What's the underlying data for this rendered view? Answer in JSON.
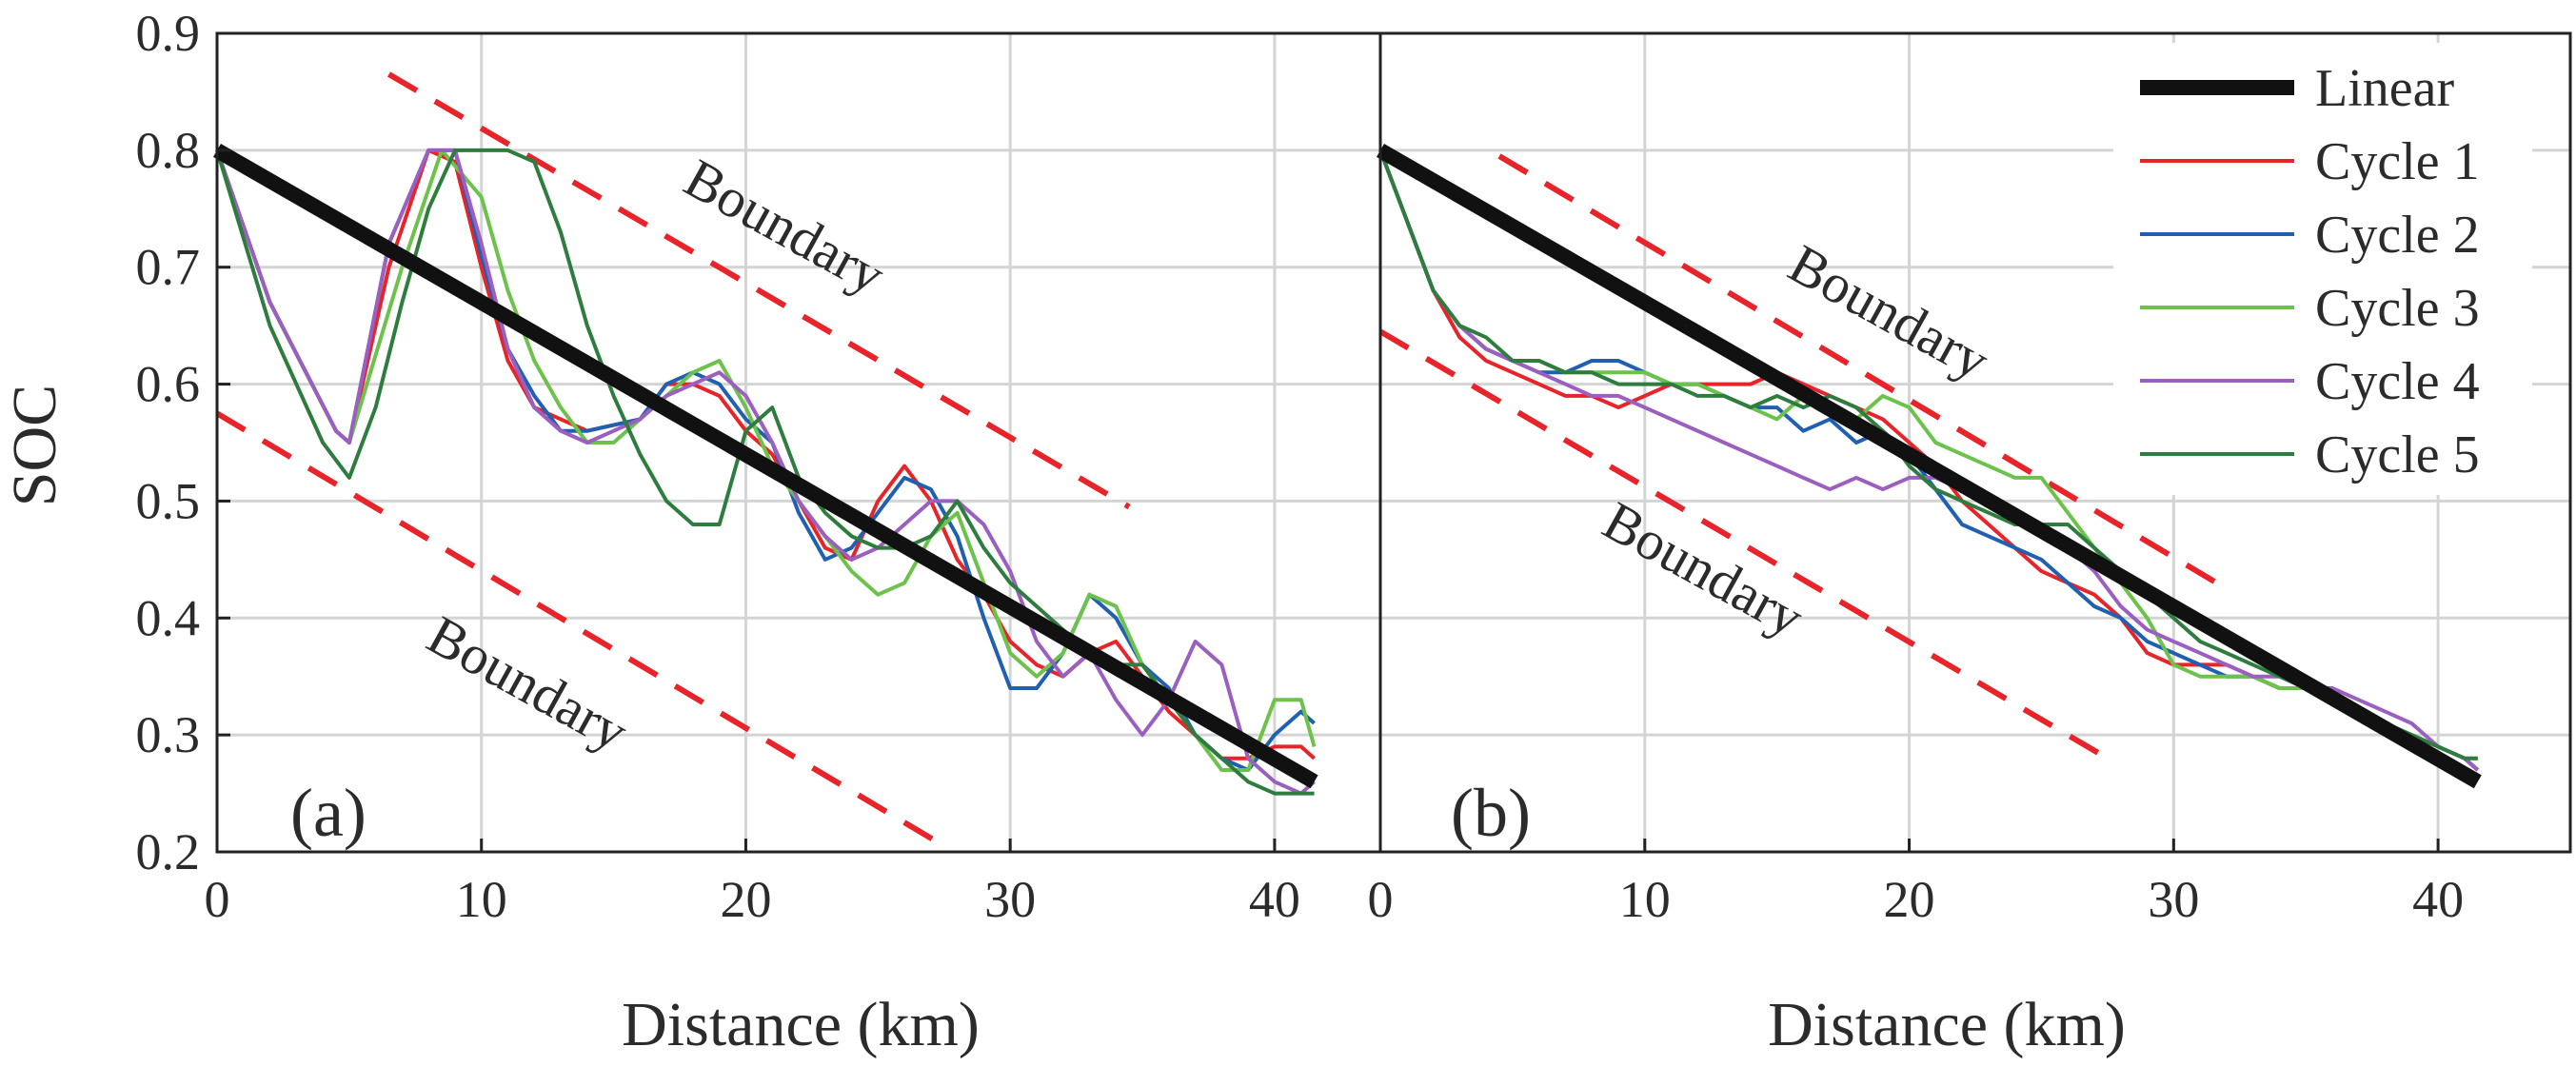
{
  "chart_data": [
    {
      "panel": "(a)",
      "type": "line",
      "xlabel": "Distance (km)",
      "ylabel": "SOC",
      "xlim": [
        0,
        44
      ],
      "ylim": [
        0.2,
        0.9
      ],
      "xticks": [
        "0",
        "10",
        "20",
        "30",
        "40"
      ],
      "yticks": [
        "0.2",
        "0.3",
        "0.4",
        "0.5",
        "0.6",
        "0.7",
        "0.8",
        "0.9"
      ],
      "grid": true,
      "series": [
        {
          "name": "Linear",
          "color": "#111111",
          "x": [
            0,
            41.5
          ],
          "y": [
            0.8,
            0.26
          ]
        },
        {
          "name": "Cycle 1",
          "color": "#e8232a",
          "x": [
            0,
            2,
            4.5,
            5,
            6.5,
            8,
            9,
            10,
            11,
            12,
            13,
            14,
            16,
            17,
            18,
            19,
            20,
            21,
            22,
            23,
            24,
            25,
            26,
            27,
            28,
            29,
            30,
            31,
            32,
            33,
            34,
            35,
            36,
            37,
            38,
            39,
            40,
            41,
            41.5
          ],
          "y": [
            0.8,
            0.67,
            0.56,
            0.55,
            0.7,
            0.8,
            0.79,
            0.7,
            0.62,
            0.58,
            0.57,
            0.56,
            0.57,
            0.6,
            0.6,
            0.59,
            0.56,
            0.54,
            0.5,
            0.46,
            0.45,
            0.5,
            0.53,
            0.5,
            0.45,
            0.42,
            0.38,
            0.36,
            0.35,
            0.37,
            0.38,
            0.35,
            0.32,
            0.3,
            0.28,
            0.28,
            0.29,
            0.29,
            0.28
          ]
        },
        {
          "name": "Cycle 2",
          "color": "#2060b0",
          "x": [
            0,
            2,
            4.5,
            5,
            6.5,
            8,
            9,
            10,
            11,
            12,
            13,
            14,
            16,
            17,
            18,
            19,
            20,
            21,
            22,
            23,
            24,
            25,
            26,
            27,
            28,
            29,
            30,
            31,
            32,
            33,
            34,
            35,
            36,
            37,
            38,
            39,
            40,
            41,
            41.5
          ],
          "y": [
            0.8,
            0.67,
            0.56,
            0.55,
            0.72,
            0.8,
            0.8,
            0.71,
            0.63,
            0.59,
            0.56,
            0.56,
            0.57,
            0.6,
            0.61,
            0.6,
            0.57,
            0.55,
            0.49,
            0.45,
            0.46,
            0.49,
            0.52,
            0.51,
            0.47,
            0.4,
            0.34,
            0.34,
            0.37,
            0.42,
            0.4,
            0.36,
            0.34,
            0.3,
            0.28,
            0.27,
            0.3,
            0.32,
            0.31
          ]
        },
        {
          "name": "Cycle 3",
          "color": "#6cc24a",
          "x": [
            0,
            2,
            4.5,
            5,
            7,
            8.5,
            10,
            11,
            12,
            13,
            14,
            15,
            16,
            17,
            18,
            19,
            20,
            21,
            22,
            23,
            24,
            25,
            26,
            27,
            28,
            29,
            30,
            31,
            32,
            33,
            34,
            35,
            36,
            37,
            38,
            39,
            40,
            41,
            41.5
          ],
          "y": [
            0.8,
            0.67,
            0.56,
            0.55,
            0.7,
            0.8,
            0.76,
            0.68,
            0.62,
            0.58,
            0.55,
            0.55,
            0.57,
            0.59,
            0.61,
            0.62,
            0.58,
            0.53,
            0.5,
            0.47,
            0.44,
            0.42,
            0.43,
            0.47,
            0.49,
            0.43,
            0.37,
            0.35,
            0.37,
            0.42,
            0.41,
            0.36,
            0.33,
            0.3,
            0.27,
            0.27,
            0.33,
            0.33,
            0.29
          ]
        },
        {
          "name": "Cycle 4",
          "color": "#9b5fc0",
          "x": [
            0,
            2,
            4.5,
            5,
            6.5,
            8,
            9,
            10,
            11,
            12,
            13,
            14,
            16,
            17,
            18,
            19,
            20,
            21,
            22,
            23,
            24,
            25,
            26,
            27,
            28,
            29,
            30,
            31,
            32,
            33,
            34,
            35,
            36,
            37,
            38,
            39,
            40,
            41,
            41.5
          ],
          "y": [
            0.8,
            0.67,
            0.56,
            0.55,
            0.72,
            0.8,
            0.8,
            0.72,
            0.63,
            0.58,
            0.56,
            0.55,
            0.57,
            0.59,
            0.6,
            0.61,
            0.59,
            0.55,
            0.5,
            0.47,
            0.45,
            0.46,
            0.48,
            0.5,
            0.5,
            0.48,
            0.44,
            0.38,
            0.35,
            0.37,
            0.33,
            0.3,
            0.33,
            0.38,
            0.36,
            0.28,
            0.26,
            0.25,
            0.26
          ]
        },
        {
          "name": "Cycle 5",
          "color": "#2e7d3f",
          "x": [
            0,
            2,
            4,
            5,
            6,
            7,
            8,
            9,
            10,
            11,
            12,
            13,
            14,
            15,
            16,
            17,
            18,
            19,
            20,
            21,
            22,
            23,
            24,
            25,
            26,
            27,
            28,
            29,
            30,
            31,
            32,
            33,
            34,
            35,
            36,
            37,
            38,
            39,
            40,
            41,
            41.5
          ],
          "y": [
            0.8,
            0.65,
            0.55,
            0.52,
            0.58,
            0.67,
            0.75,
            0.8,
            0.8,
            0.8,
            0.79,
            0.73,
            0.65,
            0.59,
            0.54,
            0.5,
            0.48,
            0.48,
            0.56,
            0.58,
            0.52,
            0.49,
            0.47,
            0.46,
            0.46,
            0.47,
            0.5,
            0.46,
            0.43,
            0.41,
            0.39,
            0.37,
            0.36,
            0.36,
            0.33,
            0.3,
            0.28,
            0.26,
            0.25,
            0.25,
            0.25
          ]
        }
      ],
      "boundaries": [
        {
          "label": "Boundary",
          "x": [
            6.5,
            34.5
          ],
          "y": [
            0.865,
            0.495
          ]
        },
        {
          "label": "Boundary",
          "x": [
            0,
            27.5
          ],
          "y": [
            0.575,
            0.205
          ]
        }
      ],
      "annotations": [
        "Boundary",
        "Boundary",
        "(a)"
      ]
    },
    {
      "panel": "(b)",
      "type": "line",
      "xlabel": "Distance (km)",
      "ylabel": "",
      "xlim": [
        0,
        45
      ],
      "ylim": [
        0.2,
        0.9
      ],
      "xticks": [
        "0",
        "10",
        "20",
        "30",
        "40"
      ],
      "grid": true,
      "legend": "top-right",
      "series": [
        {
          "name": "Linear",
          "color": "#111111",
          "x": [
            0,
            41.5
          ],
          "y": [
            0.8,
            0.26
          ]
        },
        {
          "name": "Cycle 1",
          "color": "#e8232a",
          "x": [
            0,
            1,
            2,
            3,
            4,
            5,
            6,
            7,
            8,
            9,
            10,
            11,
            12,
            13,
            14,
            15,
            16,
            17,
            18,
            19,
            20,
            21,
            22,
            23,
            24,
            25,
            26,
            27,
            28,
            29,
            30,
            31,
            32,
            33,
            34,
            35,
            36,
            37,
            38,
            39,
            40,
            41,
            41.5
          ],
          "y": [
            0.8,
            0.74,
            0.68,
            0.64,
            0.62,
            0.61,
            0.6,
            0.59,
            0.59,
            0.58,
            0.59,
            0.6,
            0.6,
            0.6,
            0.6,
            0.61,
            0.6,
            0.59,
            0.58,
            0.57,
            0.55,
            0.53,
            0.5,
            0.48,
            0.46,
            0.44,
            0.43,
            0.42,
            0.4,
            0.37,
            0.36,
            0.36,
            0.36,
            0.35,
            0.34,
            0.34,
            0.33,
            0.32,
            0.31,
            0.3,
            0.29,
            0.28,
            0.27
          ]
        },
        {
          "name": "Cycle 2",
          "color": "#2060b0",
          "x": [
            0,
            1,
            2,
            3,
            4,
            5,
            6,
            7,
            8,
            9,
            10,
            11,
            12,
            13,
            14,
            15,
            16,
            17,
            18,
            19,
            20,
            21,
            22,
            23,
            24,
            25,
            26,
            27,
            28,
            29,
            30,
            31,
            32,
            33,
            34,
            35,
            36,
            37,
            38,
            39,
            40,
            41,
            41.5
          ],
          "y": [
            0.8,
            0.74,
            0.68,
            0.65,
            0.63,
            0.62,
            0.61,
            0.61,
            0.62,
            0.62,
            0.61,
            0.6,
            0.6,
            0.59,
            0.58,
            0.58,
            0.56,
            0.57,
            0.55,
            0.56,
            0.54,
            0.51,
            0.48,
            0.47,
            0.46,
            0.45,
            0.43,
            0.41,
            0.4,
            0.38,
            0.37,
            0.36,
            0.35,
            0.35,
            0.34,
            0.34,
            0.33,
            0.32,
            0.31,
            0.3,
            0.29,
            0.28,
            0.27
          ]
        },
        {
          "name": "Cycle 3",
          "color": "#6cc24a",
          "x": [
            0,
            1,
            2,
            3,
            4,
            5,
            6,
            7,
            8,
            9,
            10,
            11,
            12,
            13,
            14,
            15,
            16,
            17,
            18,
            19,
            20,
            21,
            22,
            23,
            24,
            25,
            26,
            27,
            28,
            29,
            30,
            31,
            32,
            33,
            34,
            35,
            36,
            37,
            38,
            39,
            40,
            41,
            41.5
          ],
          "y": [
            0.8,
            0.74,
            0.68,
            0.65,
            0.63,
            0.62,
            0.62,
            0.61,
            0.61,
            0.61,
            0.61,
            0.6,
            0.6,
            0.59,
            0.58,
            0.57,
            0.59,
            0.58,
            0.57,
            0.59,
            0.58,
            0.55,
            0.54,
            0.53,
            0.52,
            0.52,
            0.49,
            0.46,
            0.43,
            0.4,
            0.36,
            0.35,
            0.35,
            0.35,
            0.34,
            0.34,
            0.33,
            0.32,
            0.31,
            0.3,
            0.29,
            0.28,
            0.28
          ]
        },
        {
          "name": "Cycle 4",
          "color": "#9b5fc0",
          "x": [
            0,
            1,
            2,
            3,
            4,
            5,
            6,
            7,
            8,
            9,
            10,
            11,
            12,
            13,
            14,
            15,
            16,
            17,
            18,
            19,
            20,
            21,
            22,
            23,
            24,
            25,
            26,
            27,
            28,
            29,
            30,
            31,
            32,
            33,
            34,
            35,
            36,
            37,
            38,
            39,
            40,
            41,
            41.5
          ],
          "y": [
            0.8,
            0.74,
            0.68,
            0.65,
            0.63,
            0.62,
            0.61,
            0.6,
            0.59,
            0.59,
            0.58,
            0.57,
            0.56,
            0.55,
            0.54,
            0.53,
            0.52,
            0.51,
            0.52,
            0.51,
            0.52,
            0.52,
            0.51,
            0.5,
            0.49,
            0.48,
            0.46,
            0.44,
            0.41,
            0.39,
            0.38,
            0.37,
            0.36,
            0.35,
            0.35,
            0.34,
            0.34,
            0.33,
            0.32,
            0.31,
            0.29,
            0.28,
            0.27
          ]
        },
        {
          "name": "Cycle 5",
          "color": "#2e7d3f",
          "x": [
            0,
            1,
            2,
            3,
            4,
            5,
            6,
            7,
            8,
            9,
            10,
            11,
            12,
            13,
            14,
            15,
            16,
            17,
            18,
            19,
            20,
            21,
            22,
            23,
            24,
            25,
            26,
            27,
            28,
            29,
            30,
            31,
            32,
            33,
            34,
            35,
            36,
            37,
            38,
            39,
            40,
            41,
            41.5
          ],
          "y": [
            0.8,
            0.74,
            0.68,
            0.65,
            0.64,
            0.62,
            0.62,
            0.61,
            0.61,
            0.6,
            0.6,
            0.6,
            0.59,
            0.59,
            0.58,
            0.59,
            0.58,
            0.59,
            0.58,
            0.56,
            0.53,
            0.51,
            0.5,
            0.49,
            0.48,
            0.48,
            0.48,
            0.46,
            0.44,
            0.42,
            0.4,
            0.38,
            0.37,
            0.36,
            0.35,
            0.34,
            0.33,
            0.32,
            0.31,
            0.3,
            0.29,
            0.28,
            0.28
          ]
        }
      ],
      "boundaries": [
        {
          "label": "Boundary",
          "x": [
            4.5,
            32
          ],
          "y": [
            0.795,
            0.425
          ]
        },
        {
          "label": "Boundary",
          "x": [
            0,
            27.5
          ],
          "y": [
            0.645,
            0.28
          ]
        }
      ],
      "annotations": [
        "Boundary",
        "Boundary",
        "(b)"
      ]
    }
  ]
}
